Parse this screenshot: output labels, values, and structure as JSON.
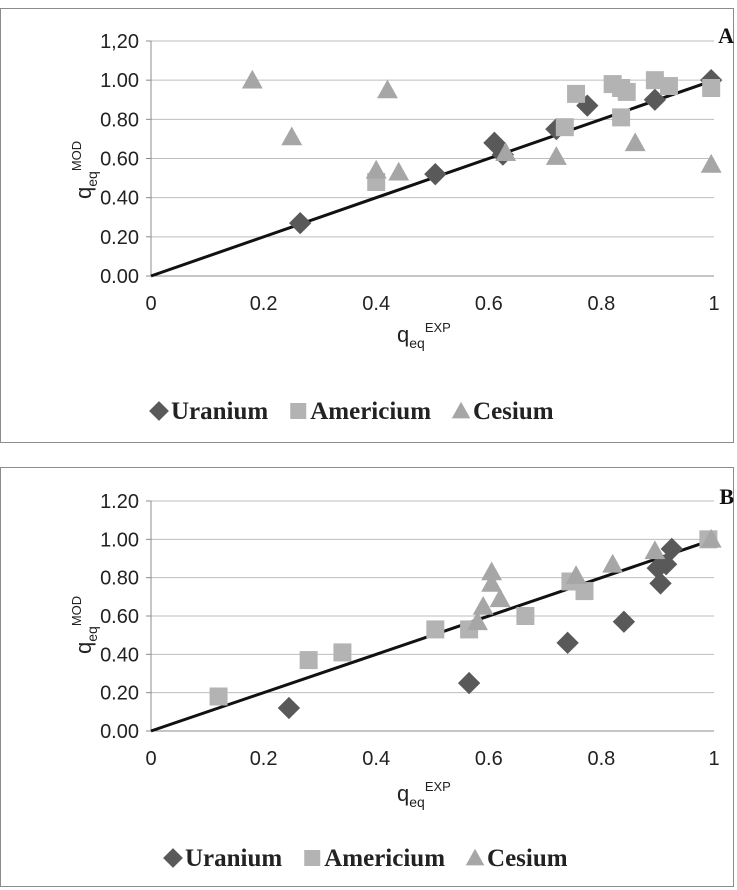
{
  "chart_data": [
    {
      "type": "scatter",
      "title": "",
      "panel_label": "A",
      "xlabel": {
        "base": "q",
        "sub": "eq",
        "sup": "EXP"
      },
      "ylabel": {
        "base": "q",
        "sub": "eq",
        "sup": "MOD"
      },
      "xlim": [
        0,
        1
      ],
      "ylim": [
        0,
        1.2
      ],
      "x_ticks": [
        "0",
        "0.2",
        "0.4",
        "0.6",
        "0.8",
        "1"
      ],
      "y_ticks": [
        "0.00",
        "0.20",
        "0.40",
        "0.60",
        "0.80",
        "1.00",
        "1,20"
      ],
      "grid": true,
      "reference_line": [
        [
          0,
          0
        ],
        [
          1,
          1
        ]
      ],
      "legend_position": "bottom",
      "series": [
        {
          "name": "Uranium",
          "marker": "diamond",
          "color": "#595959",
          "points": [
            [
              0.265,
              0.27
            ],
            [
              0.505,
              0.52
            ],
            [
              0.61,
              0.68
            ],
            [
              0.625,
              0.62
            ],
            [
              0.72,
              0.75
            ],
            [
              0.775,
              0.87
            ],
            [
              0.895,
              0.9
            ],
            [
              0.995,
              1.0
            ]
          ]
        },
        {
          "name": "Americium",
          "marker": "square",
          "color": "#b3b3b3",
          "points": [
            [
              0.4,
              0.48
            ],
            [
              0.735,
              0.76
            ],
            [
              0.755,
              0.93
            ],
            [
              0.82,
              0.98
            ],
            [
              0.835,
              0.81
            ],
            [
              0.835,
              0.96
            ],
            [
              0.845,
              0.94
            ],
            [
              0.895,
              1.0
            ],
            [
              0.92,
              0.97
            ],
            [
              0.995,
              0.96
            ]
          ]
        },
        {
          "name": "Cesium",
          "marker": "triangle",
          "color": "#a6a6a6",
          "points": [
            [
              0.18,
              1.0
            ],
            [
              0.25,
              0.71
            ],
            [
              0.4,
              0.54
            ],
            [
              0.42,
              0.95
            ],
            [
              0.44,
              0.53
            ],
            [
              0.63,
              0.63
            ],
            [
              0.72,
              0.61
            ],
            [
              0.86,
              0.68
            ],
            [
              0.995,
              0.57
            ]
          ]
        }
      ]
    },
    {
      "type": "scatter",
      "title": "",
      "panel_label": "B",
      "xlabel": {
        "base": "q",
        "sub": "eq",
        "sup": "EXP"
      },
      "ylabel": {
        "base": "q",
        "sub": "eq",
        "sup": "MOD"
      },
      "xlim": [
        0,
        1
      ],
      "ylim": [
        0,
        1.2
      ],
      "x_ticks": [
        "0",
        "0.2",
        "0.4",
        "0.6",
        "0.8",
        "1"
      ],
      "y_ticks": [
        "0.00",
        "0.20",
        "0.40",
        "0.60",
        "0.80",
        "1.00",
        "1.20"
      ],
      "grid": true,
      "reference_line": [
        [
          0,
          0
        ],
        [
          1,
          1
        ]
      ],
      "legend_position": "bottom",
      "series": [
        {
          "name": "Uranium",
          "marker": "diamond",
          "color": "#595959",
          "points": [
            [
              0.245,
              0.12
            ],
            [
              0.565,
              0.25
            ],
            [
              0.74,
              0.46
            ],
            [
              0.84,
              0.57
            ],
            [
              0.9,
              0.85
            ],
            [
              0.905,
              0.77
            ],
            [
              0.915,
              0.87
            ],
            [
              0.925,
              0.95
            ]
          ]
        },
        {
          "name": "Americium",
          "marker": "square",
          "color": "#b3b3b3",
          "points": [
            [
              0.12,
              0.18
            ],
            [
              0.28,
              0.37
            ],
            [
              0.34,
              0.41
            ],
            [
              0.505,
              0.53
            ],
            [
              0.565,
              0.53
            ],
            [
              0.665,
              0.6
            ],
            [
              0.745,
              0.78
            ],
            [
              0.77,
              0.73
            ],
            [
              0.99,
              1.0
            ]
          ]
        },
        {
          "name": "Cesium",
          "marker": "triangle",
          "color": "#a6a6a6",
          "points": [
            [
              0.58,
              0.57
            ],
            [
              0.59,
              0.65
            ],
            [
              0.605,
              0.77
            ],
            [
              0.605,
              0.83
            ],
            [
              0.62,
              0.69
            ],
            [
              0.755,
              0.81
            ],
            [
              0.82,
              0.87
            ],
            [
              0.895,
              0.94
            ],
            [
              0.995,
              1.0
            ]
          ]
        }
      ]
    }
  ]
}
